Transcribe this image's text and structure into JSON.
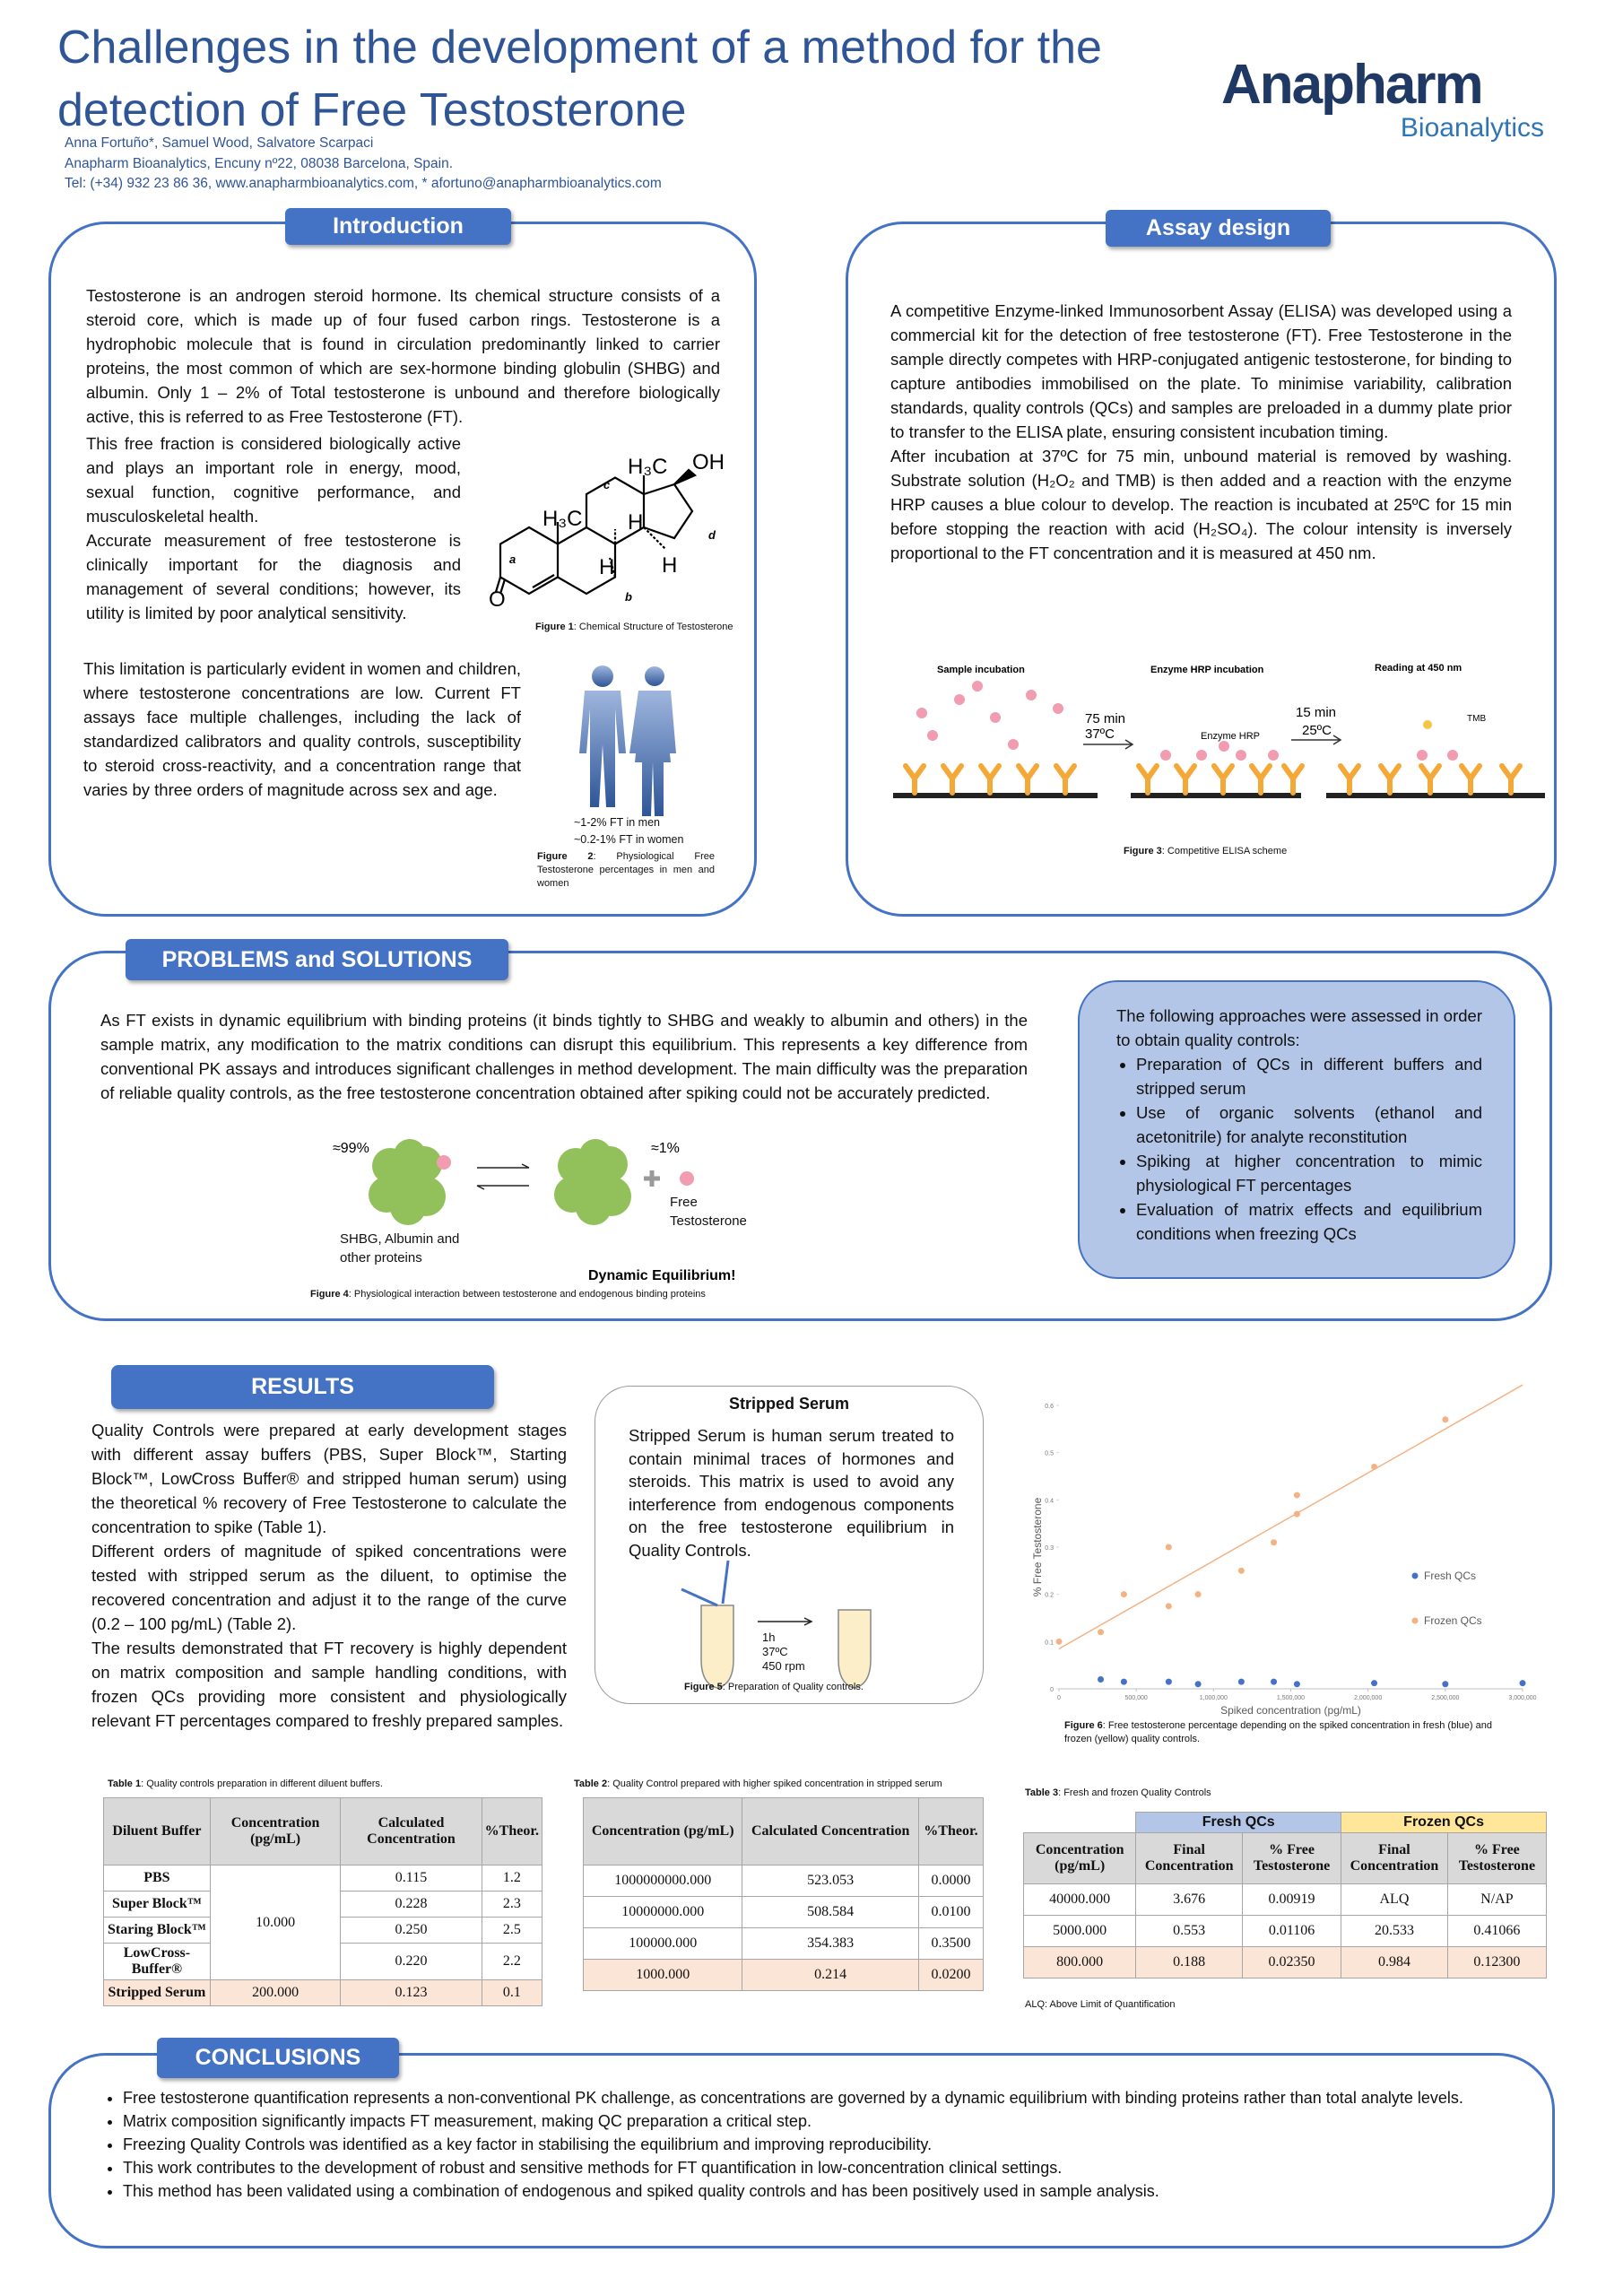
{
  "header": {
    "title_lines": [
      "Challenges in the development of a method for the",
      "detection of Free Testosterone"
    ],
    "authors": "Anna Fortuño*,  Samuel Wood, Salvatore Scarpaci",
    "affiliation": "Anapharm Bioanalytics, Encuny nº22, 08038 Barcelona, Spain.",
    "contact": "Tel: (+34) 932 23 86 36, www.anapharmbioanalytics.com, * afortuno@anapharmbioanalytics.com",
    "logo": {
      "name": "Anapharm",
      "sub": "Bioanalytics"
    }
  },
  "introduction": {
    "heading": "Introduction",
    "paragraphs": [
      "Testosterone is an androgen steroid hormone. Its chemical structure consists of a steroid core, which is made up of four fused carbon rings. Testosterone is a hydrophobic molecule that is found in circulation predominantly linked to carrier proteins, the most common of which are sex-hormone binding globulin (SHBG) and albumin. Only 1 – 2% of Total testosterone is unbound and therefore biologically active, this is referred to as Free Testosterone (FT).",
      "This free fraction is considered biologically active and plays an important role in energy, mood, sexual function, cognitive performance, and musculoskeletal health.",
      "Accurate measurement of free testosterone is clinically important for the diagnosis and management of several conditions; however, its utility is limited by poor analytical sensitivity.",
      "This limitation is particularly evident in women and children, where testosterone concentrations are low. Current FT assays face multiple challenges, including the lack of standardized calibrators and quality controls, susceptibility to steroid cross-reactivity, and a concentration range that varies by three orders of magnitude across sex and age."
    ],
    "figure1": {
      "labels": {
        "methyl_top": "H₃C",
        "hydroxyl": "OH",
        "methyl_left": "H₃C",
        "h_top": "H",
        "h_left": "H",
        "h_right": "H",
        "oxygen": "O",
        "a": "a",
        "b": "b",
        "c": "c",
        "d": "d"
      },
      "caption_label": "Figure 1",
      "caption": ": Chemical Structure of Testosterone"
    },
    "figure2": {
      "men": "~1-2% FT in men",
      "women": "~0.2-1% FT in women",
      "caption_label": "Figure 2",
      "caption": ": Physiological Free Testosterone percentages in men and women"
    }
  },
  "assay_design": {
    "heading": "Assay design",
    "paragraphs": [
      "A competitive Enzyme-linked Immunosorbent Assay (ELISA) was developed using a commercial kit for the detection of free testosterone (FT). Free Testosterone in the sample directly competes with HRP-conjugated antigenic testosterone, for binding to capture antibodies immobilised on the plate. To minimise variability, calibration standards, quality controls (QCs) and samples are preloaded in a dummy plate prior to transfer to the ELISA plate, ensuring consistent incubation timing.",
      "After incubation at 37ºC for 75 min, unbound material is removed by washing. Substrate solution (H₂O₂ and TMB) is then added and a reaction with the enzyme HRP causes a blue colour to develop. The reaction is incubated at 25ºC for 15 min before stopping the reaction with acid (H₂SO₄). The colour intensity is inversely proportional to the FT concentration and it is measured at 450 nm."
    ],
    "figure3": {
      "steps": [
        "Sample incubation",
        "Enzyme HRP incubation",
        "Reading at 450 nm"
      ],
      "step1_conditions": [
        "75 min",
        "37ºC"
      ],
      "step2_conditions": [
        "15 min",
        "25ºC"
      ],
      "enzyme": "Enzyme HRP",
      "substrate": "TMB",
      "caption_label": "Figure 3",
      "caption": ": Competitive ELISA scheme"
    }
  },
  "problems": {
    "heading": "PROBLEMS and SOLUTIONS",
    "text": "As FT exists in dynamic equilibrium with binding proteins (it binds tightly to SHBG and weakly to albumin and others) in the sample matrix, any modification to the matrix conditions can disrupt this equilibrium. This represents a key difference from conventional PK assays and introduces significant challenges in method development. The main difficulty was the preparation of reliable quality controls, as the free testosterone concentration obtained after spiking could not be accurately predicted.",
    "figure4": {
      "bound": "≈99%",
      "free": "≈1%",
      "free_label": "Free Testosterone",
      "proteins": "SHBG, Albumin and other proteins",
      "equilibrium": "Dynamic Equilibrium!",
      "caption_label": "Figure 4",
      "caption": ": Physiological interaction between testosterone and endogenous binding proteins"
    },
    "approaches": {
      "intro": "The following approaches were assessed in order to obtain quality controls:",
      "items": [
        "Preparation of QCs in different buffers and stripped serum",
        "Use of organic solvents (ethanol and acetonitrile) for analyte reconstitution",
        "Spiking at higher concentration to mimic physiological FT percentages",
        "Evaluation of matrix effects and equilibrium conditions when freezing QCs"
      ]
    }
  },
  "results": {
    "heading": "RESULTS",
    "paragraphs": [
      "Quality Controls were prepared at early development stages with different assay buffers (PBS, Super Block™, Starting Block™, LowCross Buffer® and stripped human serum) using the theoretical % recovery of Free Testosterone to calculate the concentration to spike (Table 1).",
      "Different orders of magnitude of spiked concentrations were tested with stripped serum as the diluent, to optimise the recovered concentration and adjust it to the range of the curve (0.2 – 100 pg/mL) (Table 2).",
      "The results demonstrated that FT recovery is highly dependent on matrix composition and sample handling conditions, with frozen QCs providing more consistent and physiologically relevant FT percentages compared to freshly prepared samples."
    ]
  },
  "stripped_serum": {
    "title": "Stripped Serum",
    "text": "Stripped Serum is human serum treated to contain minimal traces of hormones and steroids.  This matrix is used to avoid any interference from endogenous components on the free testosterone equilibrium in Quality Controls.",
    "conditions": [
      "1h",
      "37ºC",
      "450 rpm"
    ],
    "caption_label": "Figure 5",
    "caption": ": Preparation of Quality controls."
  },
  "chart_data": {
    "type": "scatter",
    "x_label": "Spiked concentration (pg/mL)",
    "y_label": "% Free Testosterone",
    "xlim": [
      0,
      3000000
    ],
    "ylim": [
      0,
      0.6
    ],
    "xticks": [
      0,
      {
        "value": 500000,
        "label": "500,000"
      },
      {
        "value": 1000000,
        "label": "1,000,000"
      },
      {
        "value": 1500000,
        "label": "1,500,000"
      },
      {
        "value": 2000000,
        "label": "2,000,000"
      },
      {
        "value": 2500000,
        "label": "2,500,000"
      },
      {
        "value": 3000000,
        "label": "3,000,000"
      }
    ],
    "yticks": [
      0,
      0.1,
      0.2,
      0.3,
      0.4,
      0.5,
      0.6
    ],
    "grid": false,
    "legend": "right",
    "series": [
      {
        "name": "Fresh QCs",
        "color": "#4472c4",
        "x": [
          270000,
          420000,
          710000,
          900000,
          1180000,
          1390000,
          1540000,
          2040000,
          2500000,
          3000000
        ],
        "values": [
          0.02,
          0.015,
          0.015,
          0.01,
          0.015,
          0.015,
          0.01,
          0.012,
          0.01,
          0.012
        ]
      },
      {
        "name": "Frozen QCs",
        "color": "#f4b183",
        "trendline": true,
        "x": [
          0,
          270000,
          420000,
          710000,
          710000,
          900000,
          1180000,
          1390000,
          1540000,
          1540000,
          2040000,
          2500000
        ],
        "values": [
          0.1,
          0.12,
          0.2,
          0.3,
          0.175,
          0.2,
          0.25,
          0.31,
          0.41,
          0.37,
          0.47,
          0.57
        ]
      }
    ],
    "caption_label": "Figure 6",
    "caption": ": Free testosterone percentage depending on the spiked concentration in fresh (blue) and frozen (yellow) quality controls."
  },
  "tables": [
    {
      "caption_label": "Table 1",
      "caption": ": Quality controls preparation in different diluent buffers.",
      "headers": [
        "Diluent Buffer",
        "Concentration (pg/mL)",
        "Calculated Concentration",
        "%Theor."
      ],
      "rows": [
        [
          "PBS",
          "10.000",
          "0.115",
          "1.2"
        ],
        [
          "Super Block™",
          "0.228",
          "2.3"
        ],
        [
          "Staring Block™",
          "0.250",
          "2.5"
        ],
        [
          "LowCross-Buffer®",
          "0.220",
          "2.2"
        ],
        [
          "Stripped Serum",
          "200.000",
          "0.123",
          "0.1"
        ]
      ]
    },
    {
      "caption_label": "Table 2",
      "caption": ": Quality Control prepared with higher spiked concentration in stripped serum",
      "headers": [
        "Concentration  (pg/mL)",
        "Calculated Concentration",
        "%Theor."
      ],
      "rows": [
        [
          "1000000000.000",
          "523.053",
          "0.0000"
        ],
        [
          "10000000.000",
          "508.584",
          "0.0100"
        ],
        [
          "100000.000",
          "354.383",
          "0.3500"
        ],
        [
          "1000.000",
          "0.214",
          "0.0200"
        ]
      ]
    },
    {
      "caption_label": "Table 3",
      "caption": ": Fresh and frozen Quality Controls",
      "groups": [
        {
          "name": "Fresh QCs",
          "color": "#b4c6e7"
        },
        {
          "name": "Frozen QCs",
          "color": "#ffe699"
        }
      ],
      "headers": [
        "Concentration (pg/mL)",
        "Final Concentration",
        "% Free Testosterone",
        "Final Concentration",
        "% Free Testosterone"
      ],
      "rows": [
        [
          "40000.000",
          "3.676",
          "0.00919",
          "ALQ",
          "N/AP"
        ],
        [
          "5000.000",
          "0.553",
          "0.01106",
          "20.533",
          "0.41066"
        ],
        [
          "800.000",
          "0.188",
          "0.02350",
          "0.984",
          "0.12300"
        ]
      ],
      "note": "ALQ: Above Limit of Quantification"
    }
  ],
  "conclusions": {
    "heading": "CONCLUSIONS",
    "items": [
      "Free testosterone quantification represents a non-conventional PK challenge, as concentrations are governed by a dynamic equilibrium with binding proteins rather than total analyte levels.",
      "Matrix composition significantly impacts FT measurement, making QC preparation a critical step.",
      "Freezing Quality Controls was identified as a key factor in stabilising the equilibrium and improving reproducibility.",
      "This work contributes to the development of robust and sensitive methods for FT quantification in low-concentration clinical settings.",
      "This method has been validated using a combination of endogenous and spiked quality controls and has been positively used in sample analysis."
    ]
  }
}
